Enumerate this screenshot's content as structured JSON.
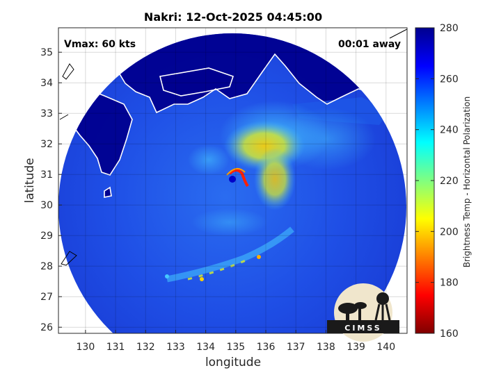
{
  "chart_data": {
    "type": "heatmap",
    "title": "Nakri: 12-Oct-2025 04:45:00",
    "xlabel": "longitude",
    "ylabel": "latitude",
    "xlim": [
      129.1,
      140.7
    ],
    "ylim": [
      25.8,
      35.8
    ],
    "xticks": [
      "130",
      "131",
      "132",
      "133",
      "134",
      "135",
      "136",
      "137",
      "138",
      "139",
      "140"
    ],
    "yticks": [
      "26",
      "27",
      "28",
      "29",
      "30",
      "31",
      "32",
      "33",
      "34",
      "35"
    ],
    "grid": true,
    "colorbar": {
      "label": "Brightness Temp - Horizontal Polarization",
      "range": [
        160,
        280
      ],
      "ticks": [
        "160",
        "180",
        "200",
        "220",
        "240",
        "260",
        "280"
      ],
      "placement": "right"
    },
    "annotations": {
      "vmax": "Vmax: 60 kts",
      "time_offset": "00:01 away"
    },
    "storm_center": {
      "lon": 134.9,
      "lat": 30.8
    },
    "swath_center": {
      "lon": 134.6,
      "lat": 30.6
    }
  },
  "logo_text": "CIMSS"
}
